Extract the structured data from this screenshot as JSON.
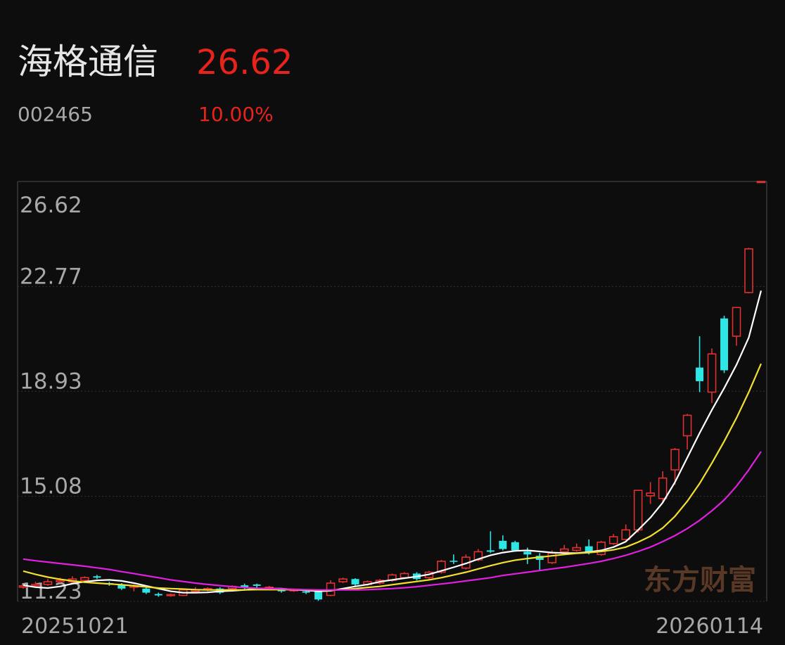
{
  "header": {
    "name": "海格通信",
    "price": "26.62",
    "code": "002465",
    "change": "10.00%"
  },
  "chart_data": {
    "type": "candlestick",
    "categories": [
      "20251021",
      null,
      null,
      null,
      null,
      null,
      null,
      null,
      null,
      null,
      null,
      null,
      null,
      null,
      null,
      null,
      null,
      null,
      null,
      null,
      null,
      null,
      null,
      null,
      null,
      null,
      null,
      null,
      null,
      null,
      null,
      null,
      null,
      null,
      null,
      null,
      null,
      null,
      null,
      null,
      null,
      null,
      null,
      null,
      null,
      null,
      null,
      null,
      null,
      null,
      null,
      null,
      null,
      null,
      null,
      null,
      null,
      null,
      null,
      null,
      "20260114"
    ],
    "open": [
      11.75,
      11.8,
      11.85,
      11.95,
      11.95,
      12.0,
      12.15,
      11.9,
      11.85,
      11.75,
      11.7,
      11.5,
      11.45,
      11.45,
      11.6,
      11.65,
      11.7,
      11.7,
      11.82,
      11.85,
      11.72,
      11.65,
      11.62,
      11.6,
      11.6,
      11.45,
      11.95,
      12.05,
      11.85,
      11.9,
      12.0,
      12.1,
      12.25,
      12.1,
      12.3,
      12.72,
      12.45,
      12.75,
      13.1,
      13.45,
      13.4,
      13.05,
      12.9,
      12.65,
      13.05,
      13.1,
      13.25,
      12.95,
      13.35,
      13.5,
      13.85,
      15.1,
      15.0,
      16.05,
      17.3,
      19.8,
      18.9,
      21.6,
      20.95,
      22.55,
      26.62
    ],
    "close": [
      11.8,
      11.85,
      11.95,
      12.0,
      12.05,
      12.1,
      12.1,
      11.85,
      11.7,
      11.8,
      11.55,
      11.45,
      11.48,
      11.65,
      11.65,
      11.7,
      11.55,
      11.78,
      11.72,
      11.8,
      11.75,
      11.6,
      11.66,
      11.55,
      11.3,
      11.9,
      12.05,
      11.85,
      11.95,
      12.0,
      12.2,
      12.25,
      12.05,
      12.3,
      12.7,
      12.68,
      12.85,
      13.05,
      13.05,
      13.15,
      13.1,
      12.95,
      12.75,
      13.0,
      13.15,
      13.2,
      13.05,
      13.4,
      13.6,
      13.85,
      15.3,
      15.2,
      15.75,
      16.8,
      18.05,
      19.3,
      20.3,
      19.7,
      22.0,
      24.15,
      26.62
    ],
    "high": [
      11.85,
      11.95,
      12.05,
      12.1,
      12.15,
      12.15,
      12.2,
      11.95,
      11.9,
      11.85,
      11.75,
      11.55,
      11.52,
      11.7,
      11.75,
      11.75,
      11.75,
      11.82,
      11.88,
      11.88,
      11.8,
      11.7,
      11.7,
      11.65,
      11.62,
      12.0,
      12.1,
      12.08,
      12.0,
      12.05,
      12.25,
      12.3,
      12.3,
      12.35,
      12.75,
      12.95,
      12.95,
      13.15,
      13.8,
      13.65,
      13.45,
      13.2,
      13.0,
      13.1,
      13.3,
      13.35,
      13.5,
      13.45,
      13.7,
      14.05,
      15.3,
      15.6,
      16.0,
      16.85,
      18.1,
      20.95,
      20.5,
      21.7,
      22.0,
      24.19,
      26.62
    ],
    "low": [
      11.7,
      11.75,
      11.8,
      11.9,
      11.9,
      11.95,
      12.05,
      11.8,
      11.65,
      11.6,
      11.5,
      11.4,
      11.4,
      11.42,
      11.55,
      11.6,
      11.5,
      11.65,
      11.68,
      11.72,
      11.68,
      11.55,
      11.58,
      11.5,
      11.25,
      11.42,
      11.9,
      11.8,
      11.8,
      11.85,
      11.95,
      12.05,
      12.0,
      12.05,
      12.25,
      12.6,
      12.4,
      12.7,
      13.0,
      13.1,
      13.05,
      12.6,
      12.35,
      12.6,
      13.0,
      13.05,
      12.95,
      12.9,
      13.3,
      13.45,
      13.75,
      14.8,
      14.85,
      15.5,
      16.8,
      18.9,
      18.5,
      19.6,
      20.6,
      22.52,
      26.62
    ],
    "up_color": "#e03030",
    "down_color": "#2ee6e6",
    "series": [
      {
        "color": "#ffffff",
        "values": [
          11.82,
          11.75,
          11.72,
          11.78,
          11.88,
          11.95,
          12.0,
          12.02,
          11.98,
          11.9,
          11.8,
          11.7,
          11.6,
          11.55,
          11.55,
          11.56,
          11.6,
          11.62,
          11.65,
          11.7,
          11.7,
          11.7,
          11.66,
          11.64,
          11.6,
          11.62,
          11.7,
          11.78,
          11.85,
          11.95,
          12.02,
          12.08,
          12.14,
          12.22,
          12.35,
          12.48,
          12.62,
          12.78,
          12.92,
          13.02,
          13.08,
          13.1,
          13.06,
          13.02,
          13.0,
          13.0,
          13.04,
          13.1,
          13.22,
          13.42,
          13.85,
          14.3,
          14.85,
          15.6,
          16.5,
          17.4,
          18.25,
          19.05,
          19.9,
          20.9,
          22.62
        ]
      },
      {
        "color": "#f2e030",
        "values": [
          12.34,
          12.22,
          12.12,
          12.04,
          11.98,
          11.93,
          11.9,
          11.87,
          11.84,
          11.8,
          11.76,
          11.72,
          11.7,
          11.68,
          11.66,
          11.65,
          11.65,
          11.65,
          11.65,
          11.66,
          11.66,
          11.66,
          11.66,
          11.65,
          11.64,
          11.64,
          11.66,
          11.7,
          11.74,
          11.78,
          11.84,
          11.9,
          11.96,
          12.02,
          12.1,
          12.2,
          12.3,
          12.42,
          12.54,
          12.65,
          12.74,
          12.8,
          12.85,
          12.9,
          12.95,
          12.99,
          13.02,
          13.06,
          13.12,
          13.22,
          13.4,
          13.62,
          13.92,
          14.35,
          14.9,
          15.55,
          16.3,
          17.1,
          17.95,
          18.9,
          19.94
        ]
      },
      {
        "color": "#e020e0",
        "values": [
          12.78,
          12.72,
          12.67,
          12.62,
          12.57,
          12.52,
          12.46,
          12.4,
          12.32,
          12.25,
          12.17,
          12.1,
          12.02,
          11.96,
          11.9,
          11.85,
          11.81,
          11.77,
          11.74,
          11.71,
          11.7,
          11.69,
          11.67,
          11.66,
          11.65,
          11.65,
          11.65,
          11.65,
          11.66,
          11.68,
          11.7,
          11.73,
          11.77,
          11.82,
          11.87,
          11.92,
          11.98,
          12.04,
          12.1,
          12.18,
          12.24,
          12.3,
          12.36,
          12.42,
          12.48,
          12.55,
          12.62,
          12.7,
          12.8,
          12.92,
          13.06,
          13.22,
          13.42,
          13.64,
          13.9,
          14.2,
          14.55,
          14.95,
          15.45,
          16.05,
          16.72
        ]
      }
    ],
    "ylim": [
      11.23,
      26.62
    ],
    "yticks": [
      11.23,
      15.08,
      18.93,
      22.77,
      26.62
    ],
    "grid": true,
    "watermark": "东方财富"
  }
}
